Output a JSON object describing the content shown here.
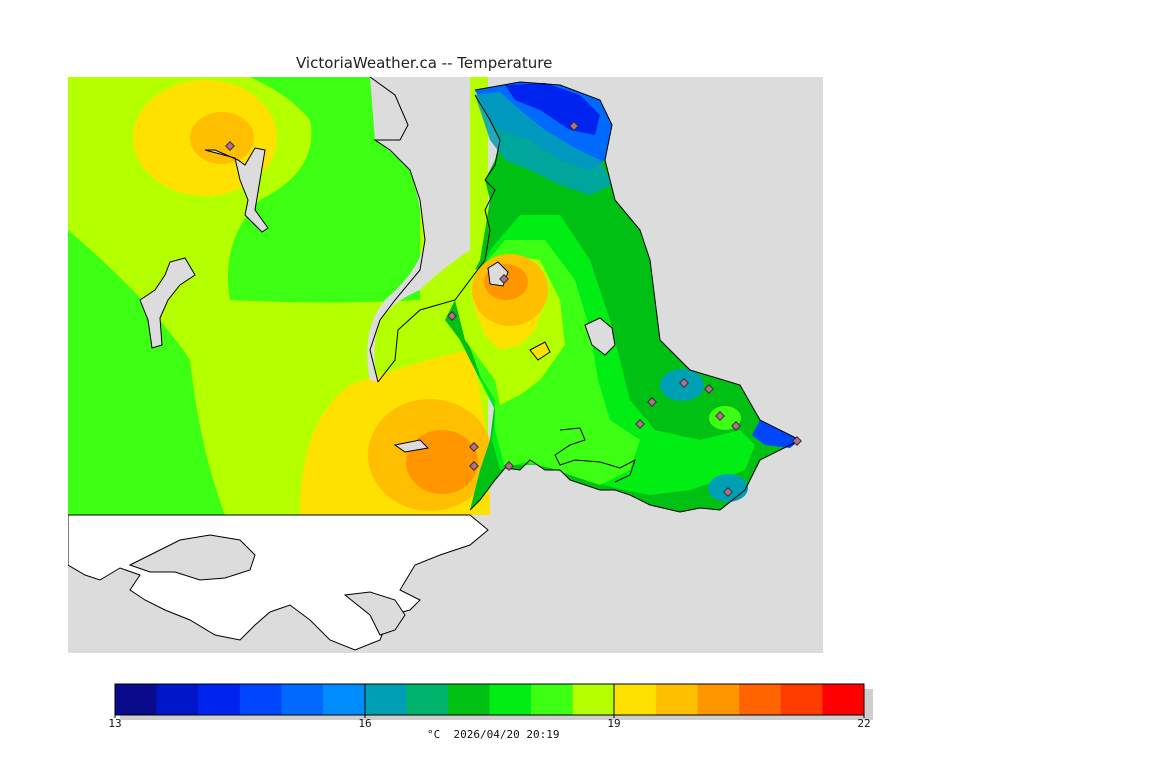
{
  "title": "VictoriaWeather.ca -- Temperature",
  "legend": {
    "ticks": [
      "13",
      "16",
      "19",
      "22"
    ],
    "unit": "°C",
    "datetime": "2026/04/20 20:19",
    "colors": [
      "#0a0a8c",
      "#0016c8",
      "#0024f0",
      "#0046ff",
      "#006aff",
      "#008cff",
      "#00a0b4",
      "#00b46e",
      "#00c014",
      "#00ee14",
      "#3cff14",
      "#b4ff00",
      "#ffe100",
      "#ffbe00",
      "#ff9600",
      "#ff6400",
      "#ff3c00",
      "#ff0000"
    ]
  },
  "map_colors": {
    "land_gray": "#dcdcdc",
    "water_white": "#ffffff",
    "station_marker": "#b46e8c"
  }
}
